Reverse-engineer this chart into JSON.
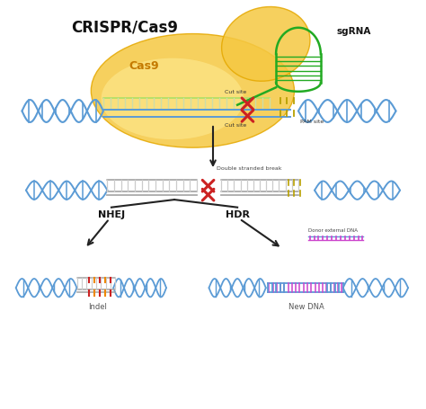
{
  "title": "CRISPR/Cas9",
  "bg_color": "#ffffff",
  "dna_color": "#5b9bd5",
  "cas9_color_outer": "#f5c842",
  "cas9_color_inner": "#fde68a",
  "sgrna_color": "#22aa22",
  "cut_color": "#cc2222",
  "ladder_top_color": "#b8e068",
  "pam_tick_color": "#b8a000",
  "nhej_label": "NHEJ",
  "hdr_label": "HDR",
  "indel_label": "Indel",
  "newdna_label": "New DNA",
  "donor_label": "Donor external DNA",
  "double_break_label": "Double stranded break",
  "cutsite_label": "Cut site",
  "pamsite_label": "PAM site",
  "cas9_label": "Cas9",
  "sgrna_label": "sgRNA"
}
